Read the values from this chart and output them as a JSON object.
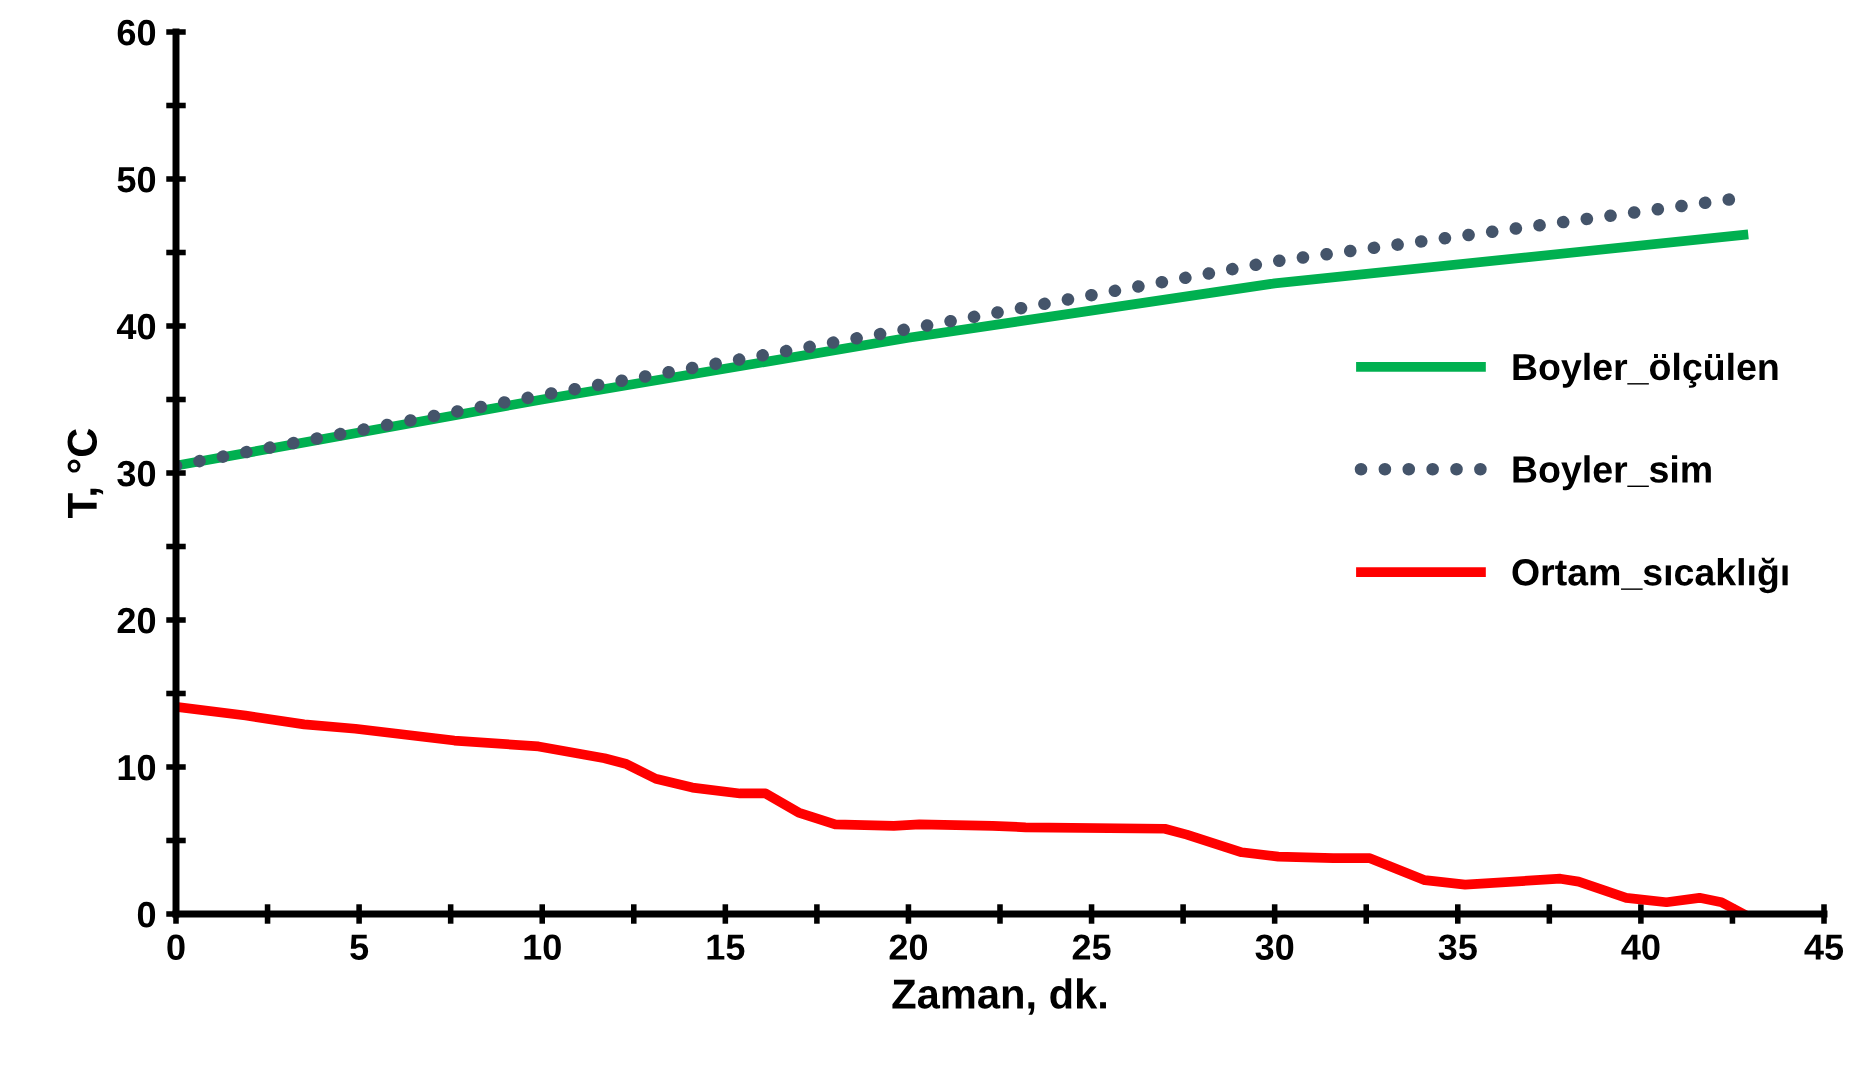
{
  "chart_data": {
    "type": "line",
    "xlabel": "Zaman, dk.",
    "ylabel": "T, °C",
    "xlim": [
      0,
      45
    ],
    "ylim": [
      0,
      60
    ],
    "xticks": [
      0,
      {
        "value": 2.5,
        "label": null
      },
      5,
      {
        "value": 7.5,
        "label": null
      },
      10,
      {
        "value": 12.5,
        "label": null
      },
      15,
      {
        "value": 17.5,
        "label": null
      },
      20,
      {
        "value": 22.5,
        "label": null
      },
      25,
      {
        "value": 27.5,
        "label": null
      },
      30,
      {
        "value": 32.5,
        "label": null
      },
      35,
      {
        "value": 37.5,
        "label": null
      },
      40,
      {
        "value": 42.5,
        "label": null
      },
      45
    ],
    "yticks": [
      0,
      {
        "value": 5,
        "label": null
      },
      10,
      {
        "value": 15,
        "label": null
      },
      20,
      {
        "value": 25,
        "label": null
      },
      30,
      {
        "value": 35,
        "label": null
      },
      40,
      {
        "value": 45,
        "label": null
      },
      50,
      {
        "value": 55,
        "label": null
      },
      60
    ],
    "grid": false,
    "legend": "right",
    "series": [
      {
        "name": "Boyler_ölçülen",
        "color": "#00b050",
        "line_style": "solid",
        "x": [
          0,
          10,
          20,
          30,
          42.8
        ],
        "values": [
          30.5,
          35.0,
          39.2,
          42.9,
          46.2
        ]
      },
      {
        "name": "Boyler_sim",
        "color": "#44546a",
        "line_style": "dotted",
        "x": [
          0,
          10,
          20,
          30,
          42.7
        ],
        "values": [
          30.5,
          35.3,
          39.8,
          44.4,
          48.7
        ]
      },
      {
        "name": "Ortam_sıcaklığı",
        "color": "#ff0000",
        "line_style": "solid",
        "x": [
          0,
          1.9,
          3.5,
          4.9,
          7.6,
          9.9,
          11.7,
          12.3,
          13.1,
          14.1,
          15.4,
          16.1,
          17.0,
          18.0,
          19.6,
          20.3,
          22.3,
          23.2,
          27.0,
          27.6,
          29.1,
          30.1,
          31.6,
          32.6,
          34.1,
          35.2,
          37.8,
          38.3,
          39.6,
          40.7,
          41.6,
          42.2,
          42.8
        ],
        "values": [
          14.1,
          13.5,
          12.9,
          12.6,
          11.8,
          11.4,
          10.6,
          10.2,
          9.2,
          8.6,
          8.2,
          8.2,
          6.9,
          6.1,
          6.0,
          6.1,
          6.0,
          5.9,
          5.8,
          5.4,
          4.2,
          3.9,
          3.8,
          3.8,
          2.3,
          2.0,
          2.4,
          2.2,
          1.1,
          0.8,
          1.1,
          0.8,
          0.0
        ]
      }
    ]
  }
}
